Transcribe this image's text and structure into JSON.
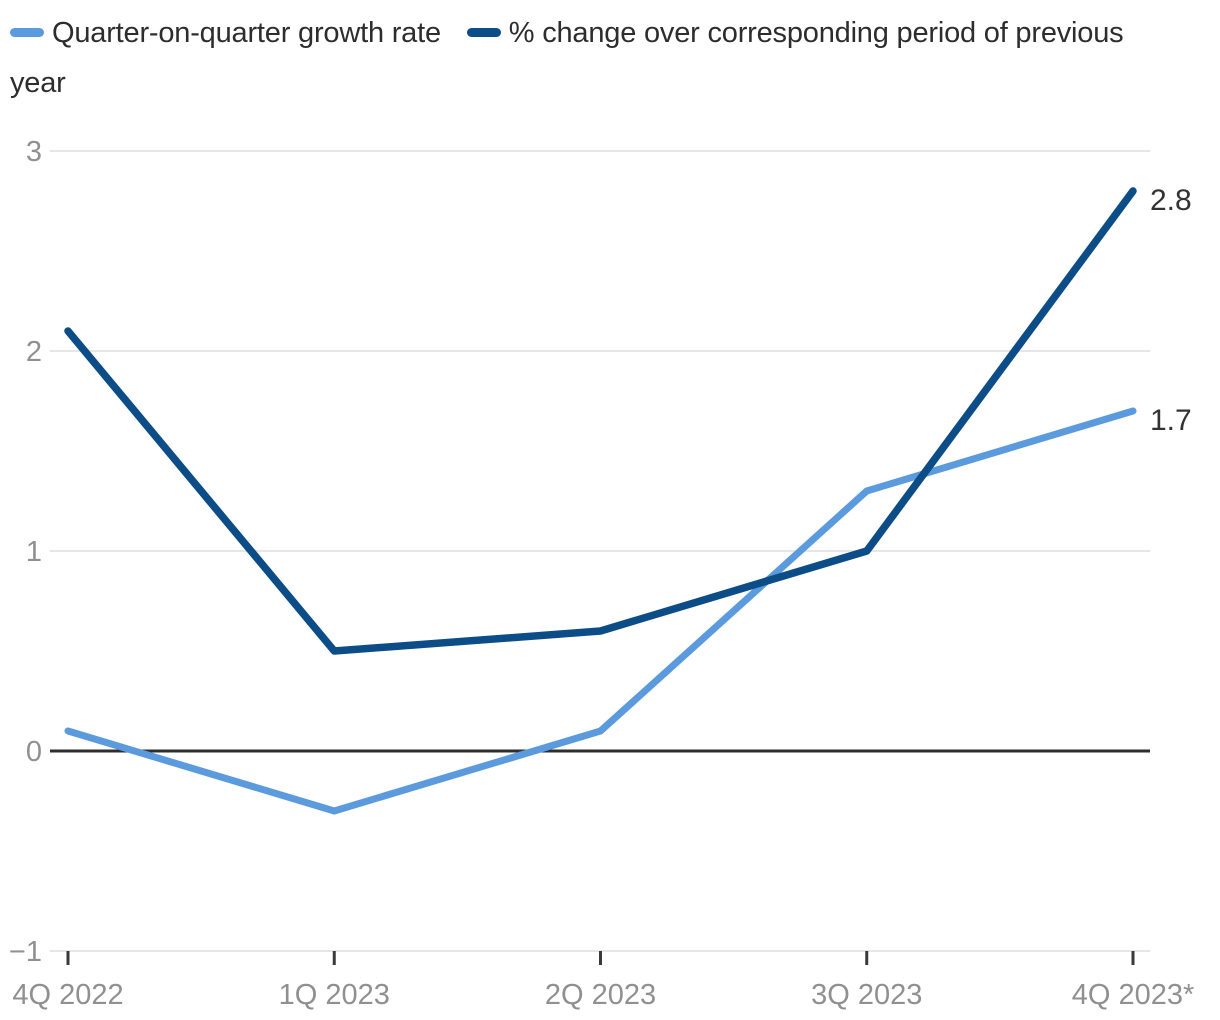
{
  "legend": {
    "items": [
      {
        "label": "Quarter-on-quarter growth rate",
        "color": "#5b9bdd"
      },
      {
        "label": "% change over corresponding period of previous year",
        "color": "#0d4d87"
      }
    ]
  },
  "chart_data": {
    "type": "line",
    "categories": [
      "4Q 2022",
      "1Q 2023",
      "2Q 2023",
      "3Q 2023",
      "4Q 2023*"
    ],
    "series": [
      {
        "name": "Quarter-on-quarter growth rate",
        "color": "#5b9bdd",
        "values": [
          0.1,
          -0.3,
          0.1,
          1.3,
          1.7
        ],
        "end_label": "1.7"
      },
      {
        "name": "% change over corresponding period of previous year",
        "color": "#0d4d87",
        "values": [
          2.1,
          0.5,
          0.6,
          1.0,
          2.8
        ],
        "end_label": "2.8"
      }
    ],
    "ylim": [
      -1,
      3
    ],
    "yticks": [
      3,
      2,
      1,
      0,
      -1
    ],
    "ytick_labels": [
      "3",
      "2",
      "1",
      "0",
      "−1"
    ],
    "grid": true,
    "zero_axis_line": true,
    "legend_position": "top-left",
    "colors": {
      "grid": "#e6e6e6",
      "zero_line": "#2e2e2e",
      "tick": "#3a3a3a",
      "axis_label": "#909090",
      "value_label": "#333333"
    }
  }
}
